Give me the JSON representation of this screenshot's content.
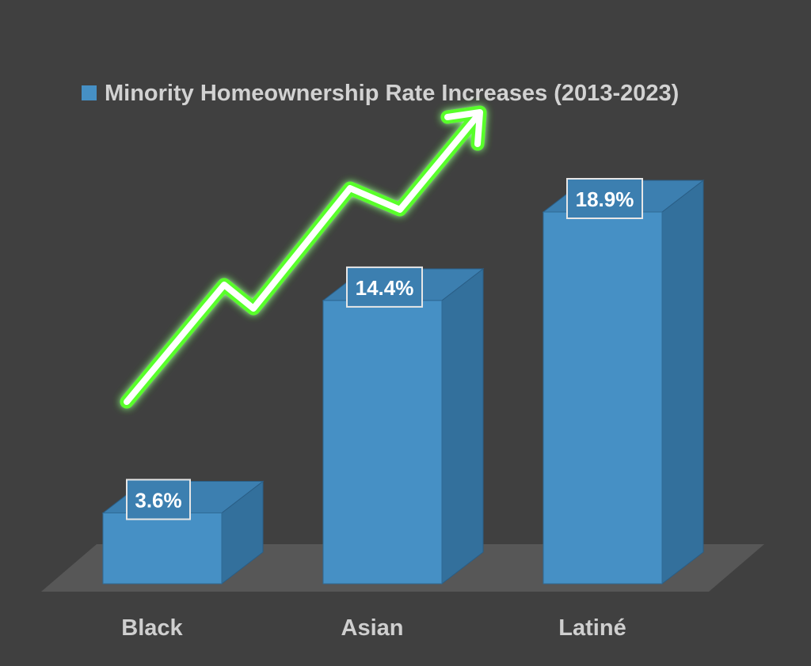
{
  "colors": {
    "background": "#404040",
    "bar_front": "#4690c5",
    "bar_side": "#33709c",
    "bar_top": "#3c7fb0",
    "floor": "#575757",
    "arrow_glow": "#58ff2a",
    "arrow_core": "#ffffff"
  },
  "decoration": {
    "trend_arrow": "glowing-green-up-arrow"
  },
  "chart_data": {
    "type": "bar",
    "style": "3d-column",
    "categories": [
      "Black",
      "Asian",
      "Latiné"
    ],
    "series": [
      {
        "name": "Minority Homeownership Rate Increases (2013-2023)",
        "values": [
          3.6,
          14.4,
          18.9
        ]
      }
    ],
    "data_labels": [
      "3.6%",
      "14.4%",
      "18.9%"
    ],
    "legend": {
      "position": "top",
      "label": "Minority Homeownership Rate Increases (2013-2023)"
    },
    "value_axis_visible": false,
    "grid": false
  }
}
